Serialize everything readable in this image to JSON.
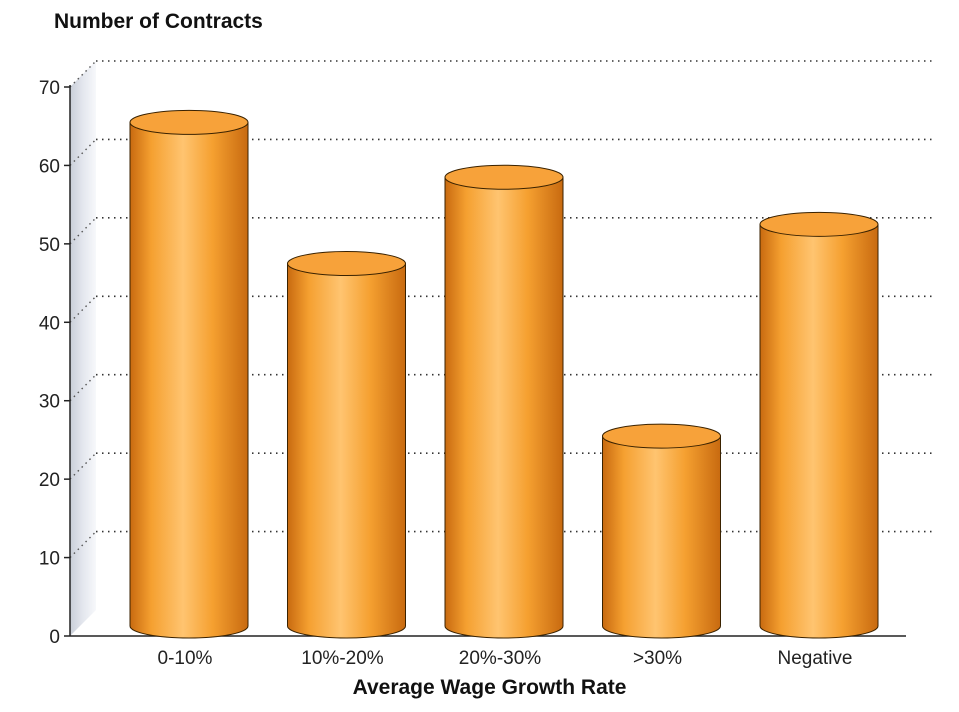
{
  "chart_data": {
    "type": "bar",
    "title": "",
    "ylabel": "Number of Contracts",
    "xlabel": "Average Wage Growth Rate",
    "categories": [
      "0-10%",
      "10%-20%",
      "20%-30%",
      ">30%",
      "Negative"
    ],
    "values": [
      66,
      48,
      59,
      26,
      53
    ],
    "ylim": [
      0,
      70
    ],
    "yticks": [
      0,
      10,
      20,
      30,
      40,
      50,
      60,
      70
    ],
    "grid": true,
    "bar_style": "3d-cylinder",
    "colors": {
      "bar": "#f5a030",
      "bar_dark": "#c86a10",
      "bar_light": "#ffc470",
      "top": "#f7a23a",
      "outline": "#3a2200"
    }
  }
}
